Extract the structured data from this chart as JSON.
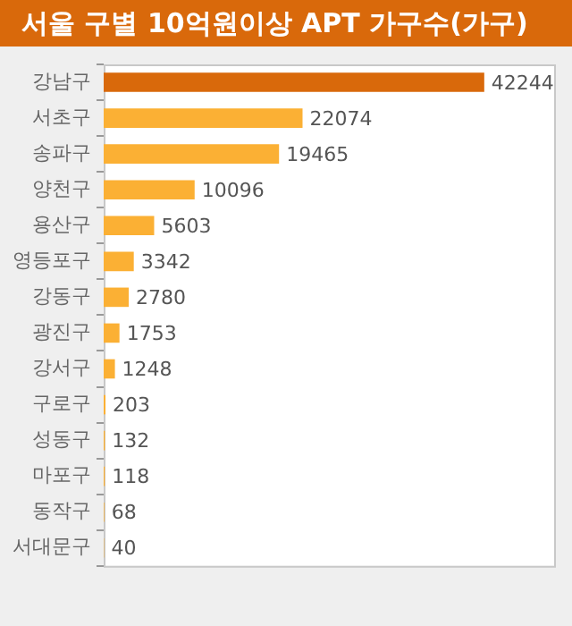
{
  "chart_data": {
    "type": "bar",
    "orientation": "horizontal",
    "title": "서울 구별 10억원이상 APT 가구수(가구)",
    "categories": [
      "강남구",
      "서초구",
      "송파구",
      "양천구",
      "용산구",
      "영등포구",
      "강동구",
      "광진구",
      "강서구",
      "구로구",
      "성동구",
      "마포구",
      "동작구",
      "서대문구"
    ],
    "values": [
      42244,
      22074,
      19465,
      10096,
      5603,
      3342,
      2780,
      1753,
      1248,
      203,
      132,
      118,
      68,
      40
    ],
    "colors": [
      "#d9690b",
      "#fbb034",
      "#fbb034",
      "#fbb034",
      "#fbb034",
      "#fbb034",
      "#fbb034",
      "#fbb034",
      "#fbb034",
      "#fbb034",
      "#fbb034",
      "#fbb034",
      "#fbb034",
      "#fbb034"
    ],
    "data_labels": true,
    "tick_labels": "y",
    "grid": false,
    "legend": false
  }
}
